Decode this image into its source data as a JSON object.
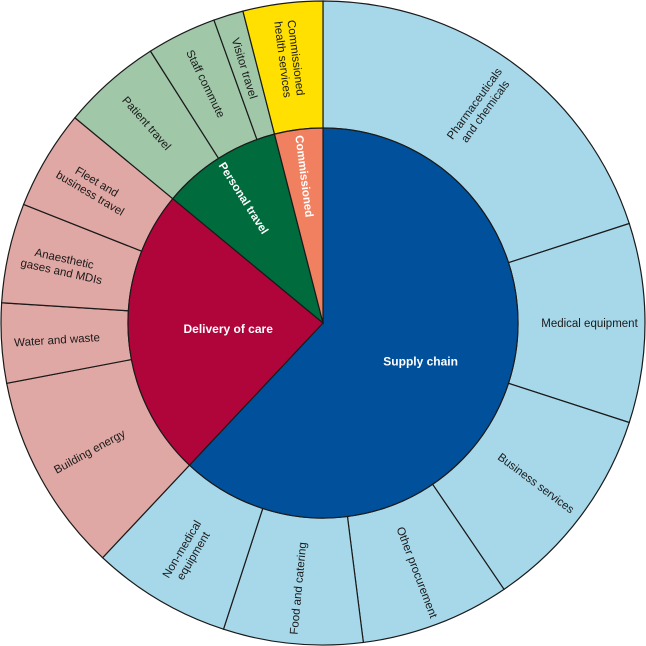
{
  "chart_data": {
    "type": "sunburst",
    "title": "",
    "inner": [
      {
        "label": "Supply chain",
        "value": 62,
        "color": "#00509b",
        "text_color": "#ffffff"
      },
      {
        "label": "Delivery of care",
        "value": 24,
        "color": "#b0053b",
        "text_color": "#ffffff"
      },
      {
        "label": "Personal travel",
        "value": 10,
        "color": "#006b3c",
        "text_color": "#ffffff"
      },
      {
        "label": "Commissioned",
        "value": 4,
        "color": "#f08060",
        "text_color": "#ffffff"
      }
    ],
    "outer": [
      {
        "label": "Pharmaceuticals and chemicals",
        "lines": [
          "Pharmaceuticals",
          "and chemicals"
        ],
        "parent": "Supply chain",
        "value": 20,
        "color": "#a6d8ea"
      },
      {
        "label": "Medical equipment",
        "lines": [
          "Medical equipment"
        ],
        "parent": "Supply chain",
        "value": 10,
        "color": "#a6d8ea"
      },
      {
        "label": "Business services",
        "lines": [
          "Business services"
        ],
        "parent": "Supply chain",
        "value": 10.5,
        "color": "#a6d8ea"
      },
      {
        "label": "Other procurement",
        "lines": [
          "Other procurement"
        ],
        "parent": "Supply chain",
        "value": 7.5,
        "color": "#a6d8ea"
      },
      {
        "label": "Food and catering",
        "lines": [
          "Food and catering"
        ],
        "parent": "Supply chain",
        "value": 7,
        "color": "#a6d8ea"
      },
      {
        "label": "Non-medical equipment",
        "lines": [
          "Non-medical",
          "equipment"
        ],
        "parent": "Supply chain",
        "value": 7,
        "color": "#a6d8ea"
      },
      {
        "label": "Building energy",
        "lines": [
          "Building energy"
        ],
        "parent": "Delivery of care",
        "value": 10,
        "color": "#e0a8a4"
      },
      {
        "label": "Water and waste",
        "lines": [
          "Water and waste"
        ],
        "parent": "Delivery of care",
        "value": 4,
        "color": "#e0a8a4"
      },
      {
        "label": "Anaesthetic gases and MDIs",
        "lines": [
          "Anaesthetic",
          "gases and MDIs"
        ],
        "parent": "Delivery of care",
        "value": 5,
        "color": "#e0a8a4"
      },
      {
        "label": "Fleet and business travel",
        "lines": [
          "Fleet and",
          "business travel"
        ],
        "parent": "Delivery of care",
        "value": 5,
        "color": "#e0a8a4"
      },
      {
        "label": "Patient travel",
        "lines": [
          "Patient travel"
        ],
        "parent": "Personal travel",
        "value": 5,
        "color": "#9fc7a8"
      },
      {
        "label": "Staff commute",
        "lines": [
          "Staff commute"
        ],
        "parent": "Personal travel",
        "value": 3.5,
        "color": "#9fc7a8"
      },
      {
        "label": "Visitor travel",
        "lines": [
          "Visitor travel"
        ],
        "parent": "Personal travel",
        "value": 1.5,
        "color": "#9fc7a8"
      },
      {
        "label": "Commissioned health services",
        "lines": [
          "Commissioned",
          "health services"
        ],
        "parent": "Commissioned",
        "value": 4,
        "color": "#ffe000"
      }
    ]
  }
}
